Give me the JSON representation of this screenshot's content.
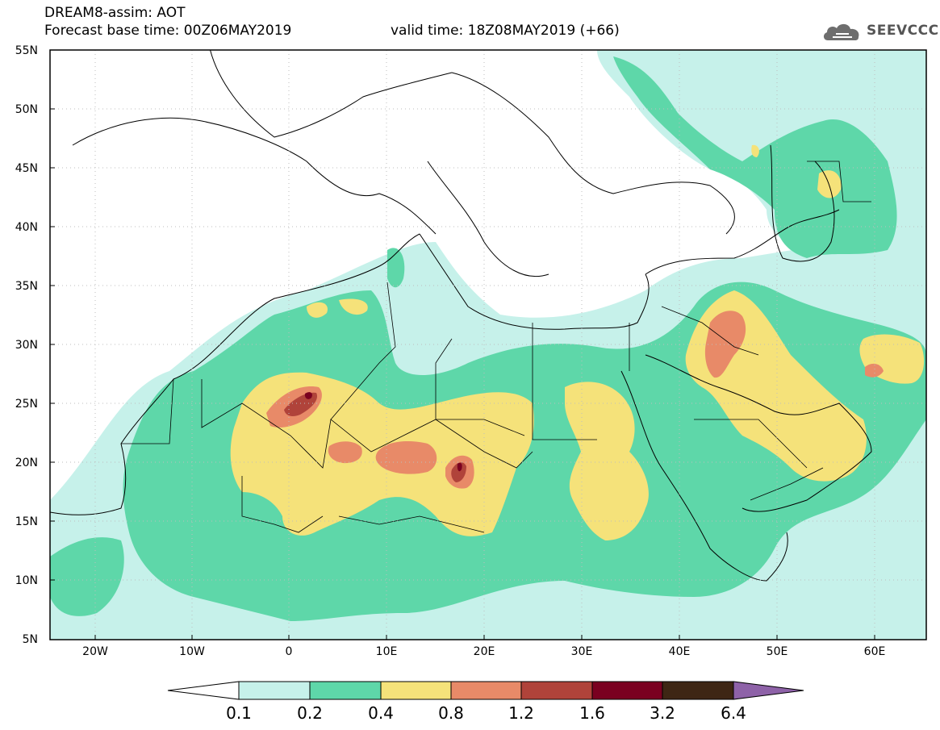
{
  "header": {
    "title": "DREAM8-assim: AOT",
    "base_time": "Forecast base time: 00Z06MAY2019",
    "valid_time": "valid time: 18Z08MAY2019 (+66)"
  },
  "logo": {
    "text": "SEEVCCC",
    "icon": "cloud-icon"
  },
  "axes": {
    "lat_labels": [
      "55N",
      "50N",
      "45N",
      "40N",
      "35N",
      "30N",
      "25N",
      "20N",
      "15N",
      "10N",
      "5N"
    ],
    "lon_labels": [
      "20W",
      "10W",
      "0",
      "10E",
      "20E",
      "30E",
      "40E",
      "50E",
      "60E"
    ],
    "lat_range": [
      5,
      55
    ],
    "lon_range": [
      -25,
      65
    ]
  },
  "colorbar": {
    "labels": [
      "0.1",
      "0.2",
      "0.4",
      "0.8",
      "1.2",
      "1.6",
      "3.2",
      "6.4"
    ],
    "colors": [
      "#ffffff",
      "#c6f1ea",
      "#5ed7a9",
      "#f5e27a",
      "#e88a68",
      "#b0433a",
      "#7a0020",
      "#3e2614",
      "#8e62a8"
    ]
  },
  "map_colors": {
    "ocean": "#ffffff",
    "aot_0_1": "#c6f1ea",
    "aot_0_2": "#5ed7a9",
    "aot_0_4": "#f5e27a",
    "aot_0_8": "#e88a68",
    "aot_1_2": "#b0433a",
    "aot_1_6": "#7a0020"
  }
}
